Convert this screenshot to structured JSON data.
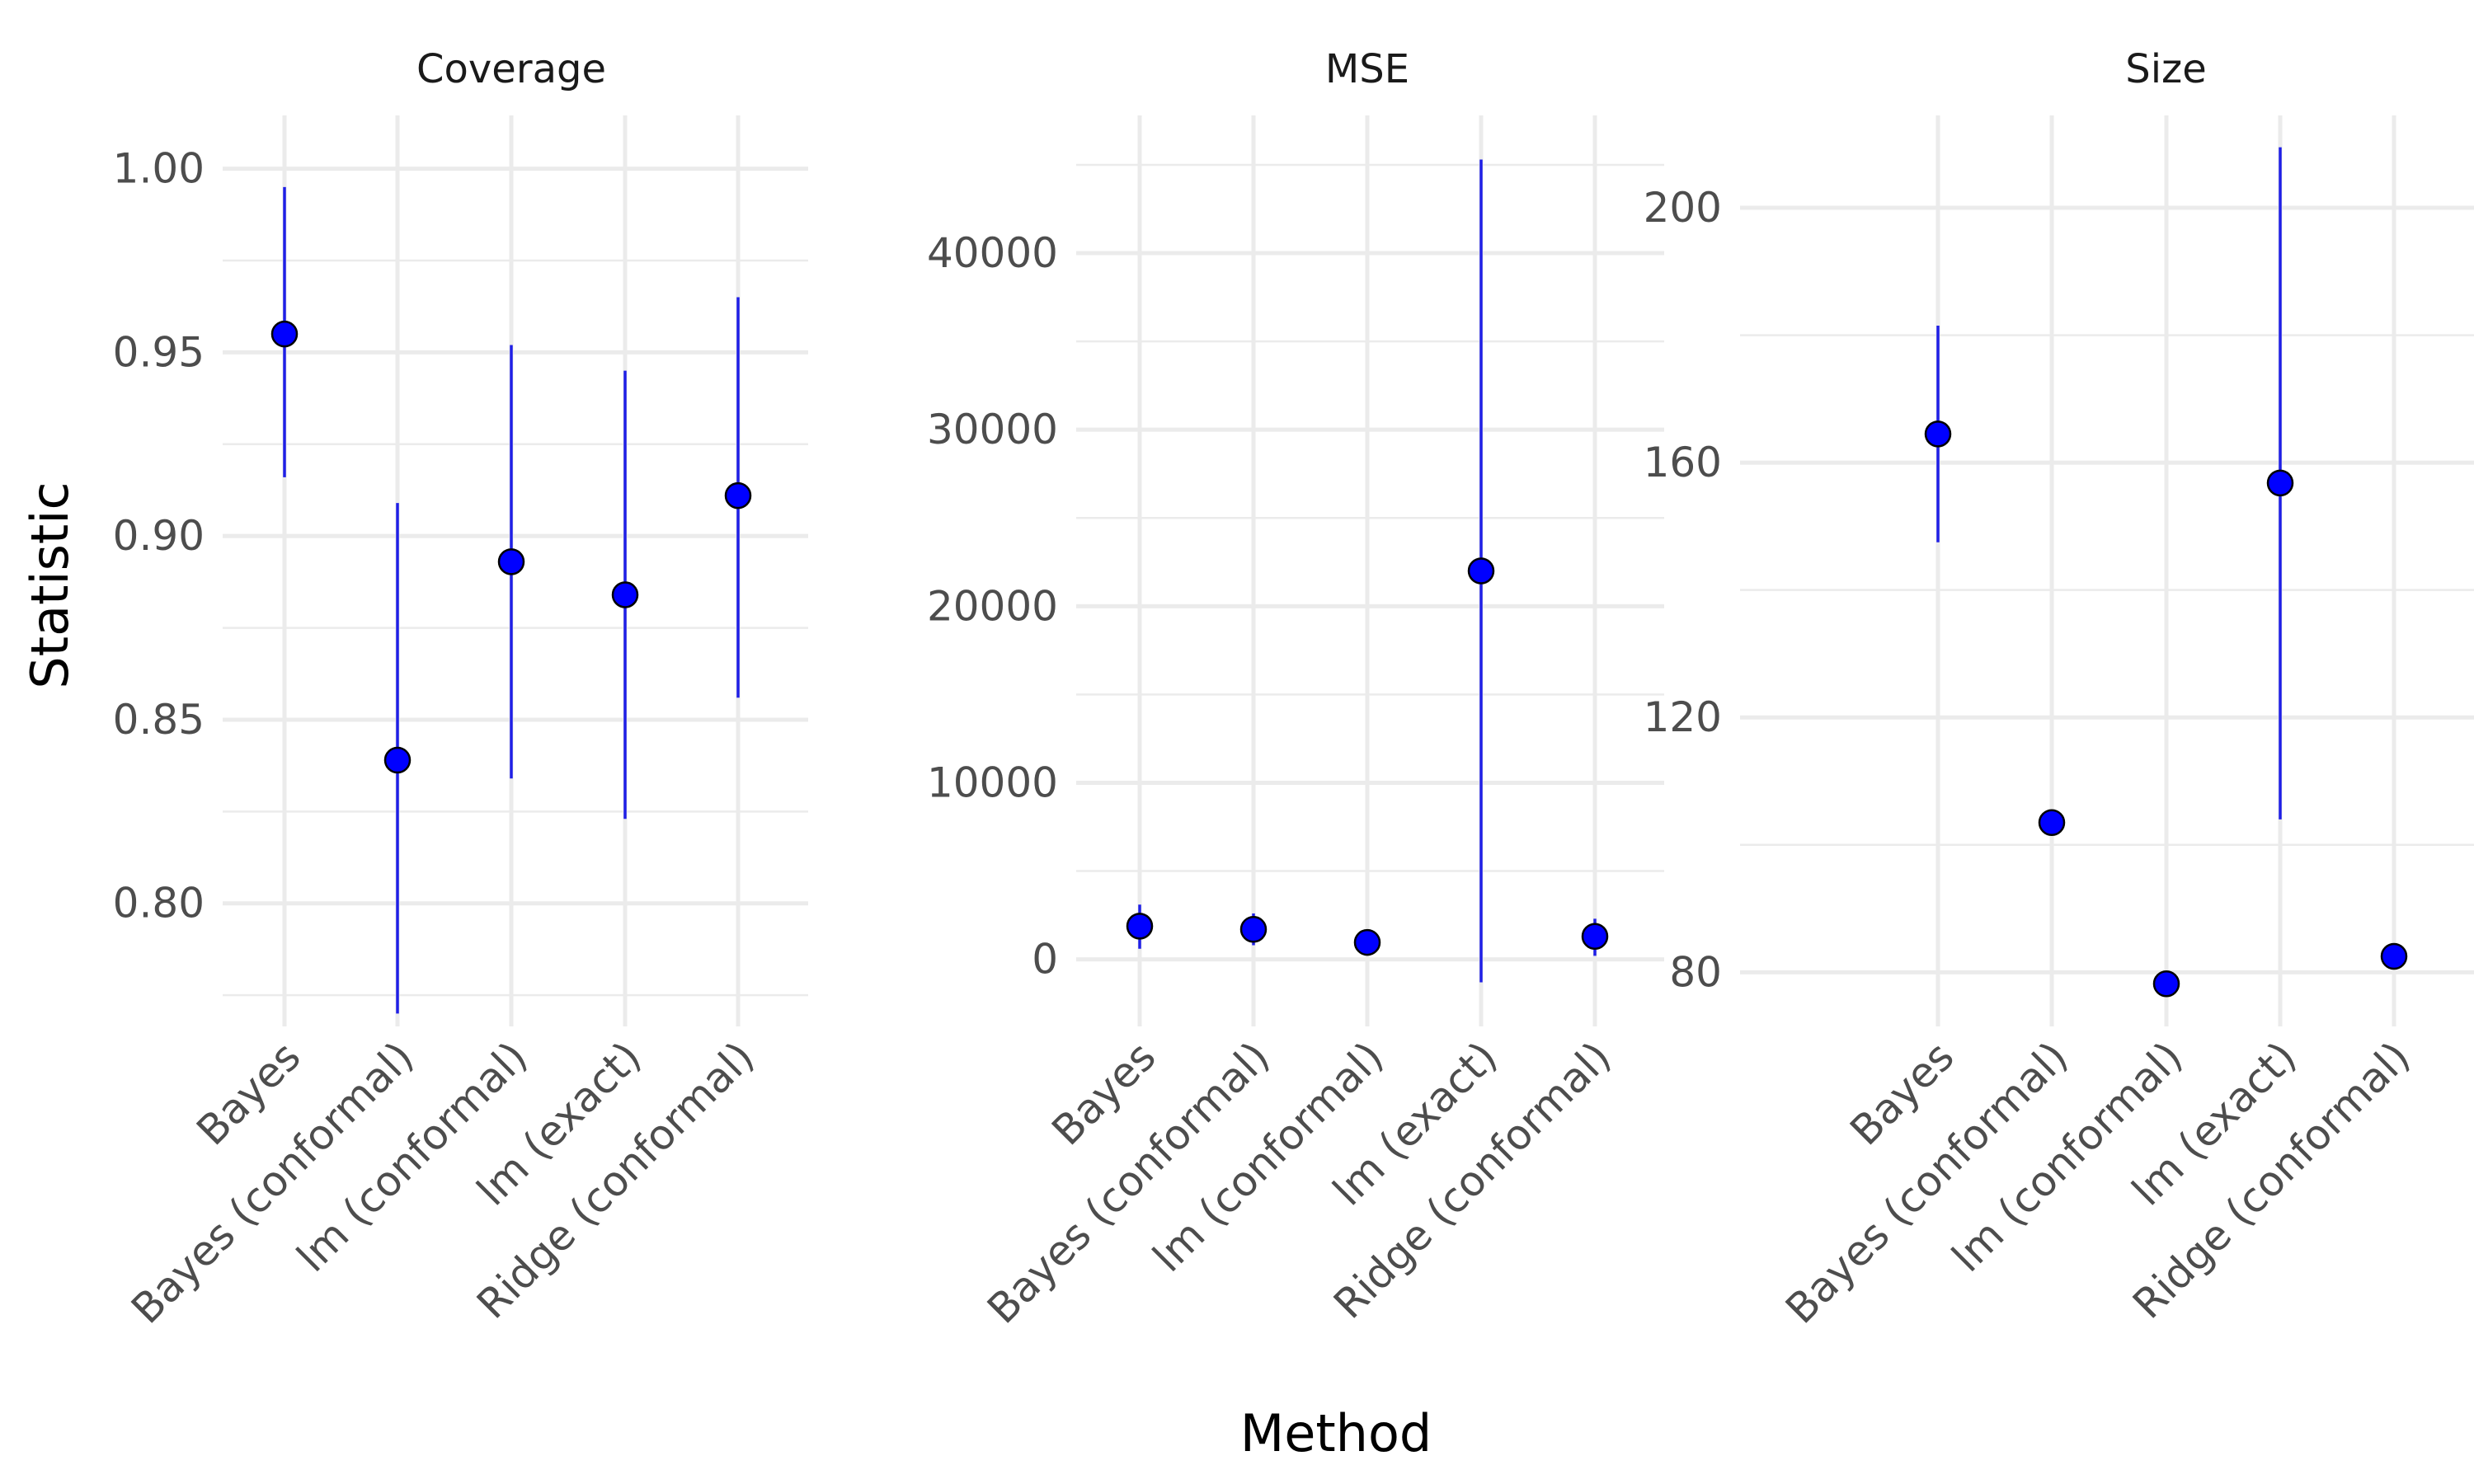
{
  "chart_data": {
    "type": "scatter",
    "xlabel": "Method",
    "ylabel": "Statistic",
    "categories": [
      "Bayes",
      "Bayes (conformal)",
      "lm (conformal)",
      "lm (exact)",
      "Ridge (conformal)"
    ],
    "point_color": "#0000ff",
    "errorbar_color": "#1f1fe6",
    "panels": [
      {
        "title": "Coverage",
        "ylim": [
          0.7665,
          1.0145
        ],
        "yticks": [
          0.8,
          0.85,
          0.9,
          0.95,
          1.0
        ],
        "ytick_labels": [
          "0.80",
          "0.85",
          "0.90",
          "0.95",
          "1.00"
        ],
        "values": [
          0.955,
          0.839,
          0.893,
          0.884,
          0.911
        ],
        "lower": [
          0.916,
          0.77,
          0.834,
          0.823,
          0.856
        ],
        "upper": [
          0.995,
          0.909,
          0.952,
          0.945,
          0.965
        ]
      },
      {
        "title": "MSE",
        "ylim": [
          -3800,
          47800
        ],
        "yticks": [
          0,
          10000,
          20000,
          30000,
          40000
        ],
        "ytick_labels": [
          "0",
          "10000",
          "20000",
          "30000",
          "40000"
        ],
        "values": [
          1880,
          1700,
          960,
          22000,
          1300
        ],
        "lower": [
          600,
          800,
          750,
          -1300,
          200
        ],
        "upper": [
          3100,
          2600,
          1150,
          45300,
          2300
        ]
      },
      {
        "title": "Size",
        "ylim": [
          71.5,
          214.5
        ],
        "yticks": [
          80,
          120,
          160,
          200
        ],
        "ytick_labels": [
          "80",
          "120",
          "160",
          "200"
        ],
        "values": [
          164.5,
          103.5,
          78.2,
          156.8,
          82.5
        ],
        "lower": [
          147.5,
          103.5,
          78.2,
          104,
          82.5
        ],
        "upper": [
          181.5,
          103.5,
          78.2,
          209.5,
          82.5
        ]
      }
    ]
  }
}
